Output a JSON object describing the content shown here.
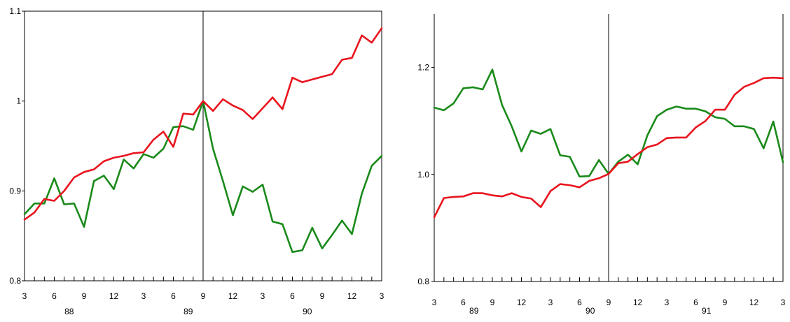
{
  "chart_data": [
    {
      "type": "line",
      "title": "",
      "xlabel": "",
      "ylabel": "",
      "ylim": [
        0.8,
        1.1
      ],
      "yticks": [
        0.8,
        0.9,
        1,
        1.1
      ],
      "ytick_labels": [
        "0.8",
        "0.9",
        "1",
        "1.1"
      ],
      "x_count": 37,
      "xtick_labels": [
        {
          "i": 0,
          "label": "3"
        },
        {
          "i": 3,
          "label": "6"
        },
        {
          "i": 6,
          "label": "9"
        },
        {
          "i": 9,
          "label": "12"
        },
        {
          "i": 12,
          "label": "3"
        },
        {
          "i": 15,
          "label": "6"
        },
        {
          "i": 18,
          "label": "9"
        },
        {
          "i": 21,
          "label": "12"
        },
        {
          "i": 24,
          "label": "3"
        },
        {
          "i": 27,
          "label": "6"
        },
        {
          "i": 30,
          "label": "9"
        },
        {
          "i": 33,
          "label": "12"
        },
        {
          "i": 36,
          "label": "3"
        }
      ],
      "year_labels": [
        {
          "i": 4.5,
          "label": "88"
        },
        {
          "i": 16.5,
          "label": "89"
        },
        {
          "i": 28.5,
          "label": "90"
        }
      ],
      "vertical_line_at": 18,
      "series": [
        {
          "color": "#e8141e",
          "values": [
            0.868,
            0.876,
            0.891,
            0.889,
            0.9,
            0.915,
            0.921,
            0.924,
            0.933,
            0.937,
            0.939,
            0.942,
            0.943,
            0.957,
            0.966,
            0.949,
            0.986,
            0.985,
            1.0,
            0.989,
            1.002,
            0.995,
            0.99,
            0.98,
            0.992,
            1.004,
            0.991,
            1.026,
            1.021,
            1.024,
            1.027,
            1.03,
            1.046,
            1.048,
            1.073,
            1.065,
            1.081
          ]
        },
        {
          "color": "#1a8a1a",
          "values": [
            0.874,
            0.886,
            0.886,
            0.914,
            0.885,
            0.886,
            0.86,
            0.911,
            0.917,
            0.902,
            0.935,
            0.925,
            0.941,
            0.937,
            0.947,
            0.971,
            0.972,
            0.968,
            1.0,
            0.947,
            0.911,
            0.873,
            0.905,
            0.899,
            0.907,
            0.866,
            0.863,
            0.832,
            0.834,
            0.859,
            0.836,
            0.851,
            0.867,
            0.852,
            0.897,
            0.928,
            0.939
          ]
        }
      ]
    },
    {
      "type": "line",
      "title": "",
      "xlabel": "",
      "ylabel": "",
      "ylim": [
        0.8,
        1.3
      ],
      "yticks": [
        0.8,
        1.0,
        1.2
      ],
      "ytick_labels": [
        "0.8",
        "1.0",
        "1.2"
      ],
      "x_count": 37,
      "xtick_labels": [
        {
          "i": 0,
          "label": "3"
        },
        {
          "i": 3,
          "label": "6"
        },
        {
          "i": 6,
          "label": "9"
        },
        {
          "i": 9,
          "label": "12"
        },
        {
          "i": 12,
          "label": "3"
        },
        {
          "i": 15,
          "label": "6"
        },
        {
          "i": 18,
          "label": "9"
        },
        {
          "i": 21,
          "label": "12"
        },
        {
          "i": 24,
          "label": "3"
        },
        {
          "i": 27,
          "label": "6"
        },
        {
          "i": 30,
          "label": "9"
        },
        {
          "i": 33,
          "label": "12"
        },
        {
          "i": 36,
          "label": "3"
        }
      ],
      "year_labels": [
        {
          "i": 4.1,
          "label": "89"
        },
        {
          "i": 16.1,
          "label": "90"
        },
        {
          "i": 28.1,
          "label": "91"
        }
      ],
      "vertical_line_at": 18,
      "series": [
        {
          "color": "#e8141e",
          "values": [
            0.92,
            0.956,
            0.958,
            0.959,
            0.965,
            0.965,
            0.961,
            0.959,
            0.965,
            0.958,
            0.955,
            0.939,
            0.969,
            0.982,
            0.98,
            0.976,
            0.988,
            0.993,
            1.001,
            1.021,
            1.024,
            1.038,
            1.051,
            1.056,
            1.068,
            1.069,
            1.069,
            1.088,
            1.1,
            1.121,
            1.121,
            1.149,
            1.164,
            1.171,
            1.18,
            1.181,
            1.18
          ]
        },
        {
          "color": "#1a8a1a",
          "values": [
            1.125,
            1.12,
            1.133,
            1.161,
            1.163,
            1.159,
            1.196,
            1.13,
            1.09,
            1.043,
            1.082,
            1.076,
            1.085,
            1.036,
            1.033,
            0.996,
            0.997,
            1.027,
            1.001,
            1.024,
            1.037,
            1.019,
            1.073,
            1.109,
            1.121,
            1.127,
            1.123,
            1.123,
            1.118,
            1.107,
            1.104,
            1.09,
            1.09,
            1.085,
            1.049,
            1.099,
            1.023
          ]
        }
      ]
    }
  ]
}
